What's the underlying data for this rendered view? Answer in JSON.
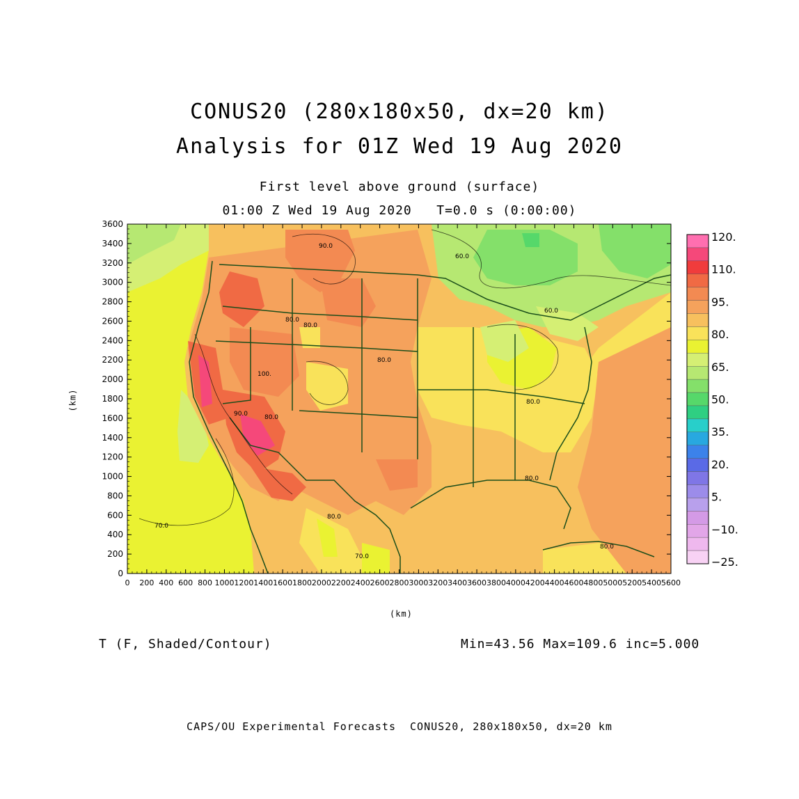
{
  "titles": {
    "line1": "CONUS20 (280x180x50, dx=20 km)",
    "line2": "Analysis for 01Z Wed 19 Aug 2020",
    "sub1": "First level above ground (surface)",
    "sub2": "01:00 Z Wed 19 Aug 2020   T=0.0 s (0:00:00)"
  },
  "field_label": "T (F, Shaded/Contour)",
  "stats": "Min=43.56 Max=109.6 inc=5.000",
  "footer": "CAPS/OU Experimental Forecasts  CONUS20, 280x180x50, dx=20 km",
  "axes": {
    "x_unit": "(km)",
    "y_unit": "(km)",
    "x_ticks": [
      "0",
      "200",
      "400",
      "600",
      "800",
      "1000",
      "1200",
      "1400",
      "1600",
      "1800",
      "2000",
      "2200",
      "2400",
      "2600",
      "2800",
      "3000",
      "3200",
      "3400",
      "3600",
      "3800",
      "4000",
      "4200",
      "4400",
      "4600",
      "4800",
      "5000",
      "5200",
      "5400",
      "5600"
    ],
    "y_ticks": [
      "0",
      "200",
      "400",
      "600",
      "800",
      "1000",
      "1200",
      "1400",
      "1600",
      "1800",
      "2000",
      "2200",
      "2400",
      "2600",
      "2800",
      "3000",
      "3200",
      "3400",
      "3600"
    ]
  },
  "colorbar": {
    "colors": [
      "#ff6fb0",
      "#f5487a",
      "#f03c3c",
      "#f06a44",
      "#f38a52",
      "#f5a25c",
      "#f7c05e",
      "#f9e25a",
      "#eaf232",
      "#d5ef74",
      "#b6e872",
      "#84e06a",
      "#56d86a",
      "#2fcf82",
      "#28cfca",
      "#28a8e0",
      "#3c82ea",
      "#5a6ae6",
      "#7f76e6",
      "#9c8cea",
      "#b8a0ec",
      "#d49ae6",
      "#e2a6e8",
      "#efb8ee",
      "#f8d2f4"
    ],
    "labels": [
      "120.",
      "110.",
      "95.",
      "80.",
      "65.",
      "50.",
      "35.",
      "20.",
      "5.",
      "−10.",
      "−25."
    ]
  },
  "contour_labels": [
    "90.0",
    "60.0",
    "60.0",
    "80.0",
    "80.0",
    "80.0",
    "80.0",
    "90.0",
    "100.",
    "80.0",
    "70.0",
    "70.0",
    "80.0",
    "80.0",
    "80.0"
  ]
}
